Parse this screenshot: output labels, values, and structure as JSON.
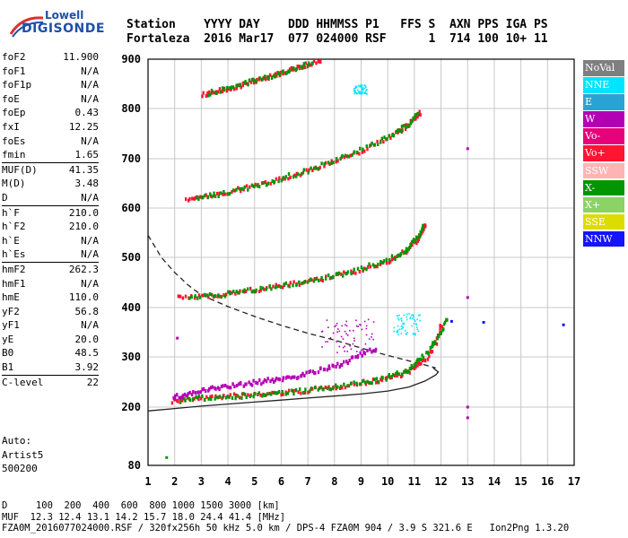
{
  "logo": {
    "line1": "Lowell",
    "line2": "DIGISONDE"
  },
  "header": {
    "row1": "Station    YYYY DAY    DDD HHMMSS P1   FFS S  AXN PPS IGA PS",
    "row2": "Fortaleza  2016 Mar17  077 024000 RSF      1  714 100 10+ 11"
  },
  "params": [
    {
      "k": "foF2",
      "v": "11.900"
    },
    {
      "k": "foF1",
      "v": "N/A"
    },
    {
      "k": "foF1p",
      "v": "N/A"
    },
    {
      "k": "foE",
      "v": "N/A"
    },
    {
      "k": "foEp",
      "v": "0.43"
    },
    {
      "k": "fxI",
      "v": "12.25"
    },
    {
      "k": "foEs",
      "v": "N/A"
    },
    {
      "k": "fmin",
      "v": "1.65"
    },
    {
      "k": "MUF(D)",
      "v": "41.35",
      "sep": true
    },
    {
      "k": "M(D)",
      "v": "3.48"
    },
    {
      "k": "D",
      "v": "N/A"
    },
    {
      "k": "h`F",
      "v": "210.0",
      "sep": true
    },
    {
      "k": "h`F2",
      "v": "210.0"
    },
    {
      "k": "h`E",
      "v": "N/A"
    },
    {
      "k": "h`Es",
      "v": "N/A"
    },
    {
      "k": "hmF2",
      "v": "262.3",
      "sep": true
    },
    {
      "k": "hmF1",
      "v": "N/A"
    },
    {
      "k": "hmE",
      "v": "110.0"
    },
    {
      "k": "yF2",
      "v": "56.8"
    },
    {
      "k": "yF1",
      "v": "N/A"
    },
    {
      "k": "yE",
      "v": "20.0"
    },
    {
      "k": "B0",
      "v": "48.5"
    },
    {
      "k": "B1",
      "v": "3.92"
    },
    {
      "k": "C-level",
      "v": "22",
      "sep": true
    }
  ],
  "auto": [
    "Auto:",
    "Artist5",
    "500200"
  ],
  "legend": [
    {
      "label": "NoVal",
      "color": "#7f7f7f"
    },
    {
      "label": "NNE",
      "color": "#00e5ff"
    },
    {
      "label": "E",
      "color": "#29a3d6"
    },
    {
      "label": "W",
      "color": "#b400b4"
    },
    {
      "label": "Vo-",
      "color": "#e6007a"
    },
    {
      "label": "Vo+",
      "color": "#ff1432"
    },
    {
      "label": "SSW",
      "color": "#ffb4b4"
    },
    {
      "label": "X-",
      "color": "#009600"
    },
    {
      "label": "X+",
      "color": "#8cd264"
    },
    {
      "label": "SSE",
      "color": "#dcdc00"
    },
    {
      "label": "NNW",
      "color": "#1414ff"
    }
  ],
  "footer": {
    "row1": "D     100  200  400  600  800 1000 1500 3000 [km]",
    "row2": "MUF  12.3 12.4 13.1 14.2 15.7 18.0 24.4 41.4 [MHz]",
    "row3": "FZA0M_2016077024000.RSF / 320fx256h 50 kHz 5.0 km / DPS-4 FZA0M 904 / 3.9 S 321.6 E   Ion2Png 1.3.20"
  },
  "chart_data": {
    "type": "scatter",
    "x_ticks": [
      1,
      2,
      3,
      4,
      5,
      6,
      7,
      8,
      9,
      10,
      11,
      12,
      13,
      14,
      15,
      16,
      17
    ],
    "y_ticks": [
      80,
      200,
      300,
      400,
      500,
      600,
      700,
      800,
      900
    ],
    "xlim": [
      1,
      17
    ],
    "ylim": [
      80,
      900
    ],
    "grid": true,
    "traces": [
      {
        "series": "Vo+",
        "points": [
          [
            1.9,
            212
          ],
          [
            2.5,
            216
          ],
          [
            3.5,
            220
          ],
          [
            4.5,
            223
          ],
          [
            5.5,
            226
          ],
          [
            6.5,
            230
          ],
          [
            7.5,
            236
          ],
          [
            8.5,
            244
          ],
          [
            9.5,
            252
          ],
          [
            10.3,
            262
          ],
          [
            10.9,
            275
          ],
          [
            11.4,
            295
          ],
          [
            11.8,
            330
          ],
          [
            12.0,
            370
          ]
        ]
      },
      {
        "series": "X-",
        "points": [
          [
            2.2,
            213
          ],
          [
            3.0,
            218
          ],
          [
            4.0,
            221
          ],
          [
            5.0,
            224
          ],
          [
            6.0,
            228
          ],
          [
            7.0,
            233
          ],
          [
            8.0,
            240
          ],
          [
            9.0,
            248
          ],
          [
            9.8,
            256
          ],
          [
            10.5,
            268
          ],
          [
            11.0,
            285
          ],
          [
            11.5,
            310
          ],
          [
            11.9,
            345
          ],
          [
            12.2,
            380
          ]
        ]
      },
      {
        "series": "W",
        "points": [
          [
            1.9,
            218
          ],
          [
            2.4,
            225
          ],
          [
            3.0,
            232
          ],
          [
            3.6,
            238
          ],
          [
            4.2,
            243
          ],
          [
            4.8,
            247
          ],
          [
            5.4,
            252
          ],
          [
            6.0,
            256
          ],
          [
            6.6,
            262
          ],
          [
            7.2,
            270
          ],
          [
            7.8,
            278
          ],
          [
            8.4,
            290
          ],
          [
            9.0,
            305
          ],
          [
            9.6,
            318
          ]
        ]
      },
      {
        "series": "Vo+",
        "points": [
          [
            2.1,
            418
          ],
          [
            3.0,
            423
          ],
          [
            4.0,
            428
          ],
          [
            5.0,
            435
          ],
          [
            6.0,
            443
          ],
          [
            7.0,
            452
          ],
          [
            8.0,
            462
          ],
          [
            9.0,
            475
          ],
          [
            10.0,
            492
          ],
          [
            10.6,
            510
          ],
          [
            11.0,
            530
          ],
          [
            11.3,
            555
          ],
          [
            11.4,
            570
          ]
        ]
      },
      {
        "series": "X-",
        "points": [
          [
            2.5,
            418
          ],
          [
            3.5,
            424
          ],
          [
            4.5,
            431
          ],
          [
            5.5,
            439
          ],
          [
            6.5,
            448
          ],
          [
            7.5,
            458
          ],
          [
            8.5,
            470
          ],
          [
            9.5,
            486
          ],
          [
            10.3,
            502
          ],
          [
            10.8,
            522
          ],
          [
            11.1,
            542
          ],
          [
            11.3,
            562
          ]
        ]
      },
      {
        "series": "Vo+",
        "points": [
          [
            2.4,
            618
          ],
          [
            3.0,
            622
          ],
          [
            4.0,
            632
          ],
          [
            5.0,
            645
          ],
          [
            6.0,
            660
          ],
          [
            7.0,
            676
          ],
          [
            8.0,
            694
          ],
          [
            9.0,
            716
          ],
          [
            10.0,
            742
          ],
          [
            10.6,
            762
          ],
          [
            11.0,
            780
          ],
          [
            11.2,
            795
          ]
        ]
      },
      {
        "series": "X-",
        "points": [
          [
            2.8,
            620
          ],
          [
            3.5,
            626
          ],
          [
            4.5,
            638
          ],
          [
            5.5,
            652
          ],
          [
            6.5,
            668
          ],
          [
            7.5,
            686
          ],
          [
            8.5,
            706
          ],
          [
            9.5,
            730
          ],
          [
            10.3,
            752
          ],
          [
            10.8,
            772
          ],
          [
            11.1,
            788
          ]
        ]
      },
      {
        "series": "Vo+",
        "points": [
          [
            3.0,
            828
          ],
          [
            3.5,
            833
          ],
          [
            4.0,
            840
          ],
          [
            4.5,
            848
          ],
          [
            5.0,
            856
          ],
          [
            5.5,
            864
          ],
          [
            6.0,
            873
          ],
          [
            6.5,
            882
          ],
          [
            7.0,
            890
          ],
          [
            7.5,
            898
          ]
        ]
      },
      {
        "series": "X-",
        "points": [
          [
            3.2,
            830
          ],
          [
            4.0,
            842
          ],
          [
            4.8,
            853
          ],
          [
            5.6,
            866
          ],
          [
            6.4,
            880
          ],
          [
            7.2,
            893
          ]
        ]
      }
    ],
    "clusters": [
      {
        "series": "W",
        "x_range": [
          7.5,
          9.5
        ],
        "y_range": [
          310,
          380
        ]
      },
      {
        "series": "NNE",
        "x_range": [
          10.2,
          11.2
        ],
        "y_range": [
          345,
          390
        ]
      },
      {
        "series": "NNE",
        "x_range": [
          8.7,
          9.2
        ],
        "y_range": [
          830,
          850
        ]
      }
    ],
    "isolated_points": [
      {
        "series": "X-",
        "x": 1.7,
        "y": 96
      },
      {
        "series": "W",
        "x": 13.0,
        "y": 720
      },
      {
        "series": "W",
        "x": 13.0,
        "y": 420
      },
      {
        "series": "W",
        "x": 13.0,
        "y": 200
      },
      {
        "series": "W",
        "x": 13.0,
        "y": 178
      },
      {
        "series": "NNW",
        "x": 13.6,
        "y": 370
      },
      {
        "series": "NNW",
        "x": 16.6,
        "y": 365
      },
      {
        "series": "NNW",
        "x": 12.4,
        "y": 372
      },
      {
        "series": "W",
        "x": 2.1,
        "y": 338
      }
    ],
    "profile_solid": [
      [
        1.0,
        192
      ],
      [
        2.0,
        197
      ],
      [
        3.0,
        202
      ],
      [
        4.0,
        206
      ],
      [
        5.0,
        210
      ],
      [
        6.0,
        214
      ],
      [
        7.0,
        218
      ],
      [
        8.0,
        222
      ],
      [
        9.0,
        226
      ],
      [
        10.0,
        232
      ],
      [
        10.8,
        240
      ],
      [
        11.4,
        252
      ],
      [
        11.8,
        264
      ],
      [
        11.9,
        270
      ],
      [
        11.7,
        278
      ]
    ],
    "profile_dashed": [
      [
        1.0,
        545
      ],
      [
        1.5,
        500
      ],
      [
        2.0,
        470
      ],
      [
        2.5,
        445
      ],
      [
        3.0,
        425
      ],
      [
        4.0,
        402
      ],
      [
        5.0,
        382
      ],
      [
        6.0,
        364
      ],
      [
        7.0,
        348
      ],
      [
        8.0,
        334
      ],
      [
        9.0,
        318
      ],
      [
        10.0,
        303
      ],
      [
        10.8,
        292
      ],
      [
        11.4,
        284
      ],
      [
        11.8,
        278
      ]
    ]
  }
}
